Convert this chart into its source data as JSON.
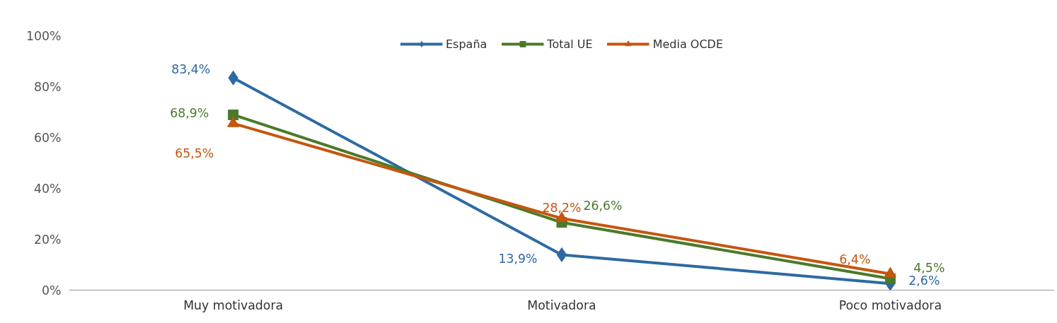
{
  "chart_data": {
    "type": "line",
    "categories": [
      "Muy motivadora",
      "Motivadora",
      "Poco motivadora"
    ],
    "series": [
      {
        "name": "España",
        "color": "#2e6aa3",
        "marker": "diamond",
        "values": [
          83.4,
          13.9,
          2.6
        ],
        "value_labels": [
          "83,4%",
          "13,9%",
          "2,6%"
        ]
      },
      {
        "name": "Total UE",
        "color": "#4b7a2b",
        "marker": "square",
        "values": [
          68.9,
          26.6,
          4.5
        ],
        "value_labels": [
          "68,9%",
          "26,6%",
          "4,5%"
        ]
      },
      {
        "name": "Media OCDE",
        "color": "#c5560f",
        "marker": "triangle",
        "values": [
          65.5,
          28.2,
          6.4
        ],
        "value_labels": [
          "65,5%",
          "28,2%",
          "6,4%"
        ]
      }
    ],
    "ylim": [
      0,
      100
    ],
    "yticks": [
      {
        "value": 0,
        "label": "0%"
      },
      {
        "value": 20,
        "label": "20%"
      },
      {
        "value": 40,
        "label": "40%"
      },
      {
        "value": 60,
        "label": "60%"
      },
      {
        "value": 80,
        "label": "80%"
      },
      {
        "value": 100,
        "label": "100%"
      }
    ],
    "legend": "top",
    "line_style": "solid"
  }
}
